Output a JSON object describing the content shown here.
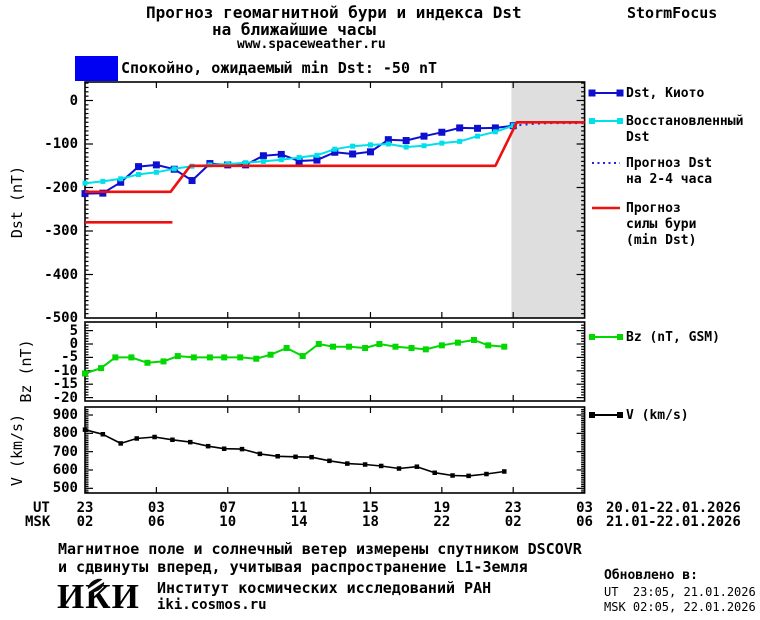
{
  "header": {
    "title_line1": "Прогноз геомагнитной бури и индекса Dst",
    "title_line2": "на ближайшие часы",
    "website": "www.spaceweather.ru",
    "brand": "StormFocus"
  },
  "alert": {
    "label": "Спокойно, ожидаемый min Dst: -50 nT",
    "color": "#0000f2"
  },
  "colors": {
    "dst_kyoto": "#0f0fd0",
    "restored_dst": "#00e0ea",
    "forecast_dst": "#2424e0",
    "storm_forecast": "#ee0f0f",
    "bz": "#00d800",
    "v": "#000000",
    "region_bg": "#dedede",
    "region_text": "#c6c6c6"
  },
  "legend": {
    "items": [
      {
        "lines": [
          "Dst, Киото"
        ],
        "color": "#0f0fd0",
        "style": "line-squares"
      },
      {
        "lines": [
          "Восстановленный",
          "Dst"
        ],
        "color": "#00e0ea",
        "style": "line-squares"
      },
      {
        "lines": [
          "Прогноз Dst",
          "на 2-4 часа"
        ],
        "color": "#2424e0",
        "style": "dotted"
      },
      {
        "lines": [
          "Прогноз",
          "силы бури",
          "(min Dst)"
        ],
        "color": "#ee0f0f",
        "style": "line"
      },
      {
        "lines": [
          "Bz (nT, GSM)"
        ],
        "color": "#00d800",
        "style": "line-squares"
      },
      {
        "lines": [
          "V (km/s)"
        ],
        "color": "#000000",
        "style": "line-squares"
      }
    ]
  },
  "xaxis": {
    "ut_label": "UT",
    "msk_label": "MSK",
    "ut_ticks": [
      "23",
      "03",
      "07",
      "11",
      "15",
      "19",
      "23",
      "03"
    ],
    "msk_ticks": [
      "02",
      "06",
      "10",
      "14",
      "18",
      "22",
      "02",
      "06"
    ],
    "ut_date_range": "20.01-22.01.2026",
    "msk_date_range": "21.01-22.01.2026"
  },
  "footer": {
    "note_line1": "Магнитное поле и солнечный ветер измерены спутником DSCOVR",
    "note_line2": "и сдвинуты вперед, учитывая распространение L1-Земля",
    "logo_text": "ИКИ",
    "institute": "Институт космических исследований РАН",
    "website": "iki.cosmos.ru",
    "updated_heading": "Обновлено в:",
    "updated_ut": "UT  23:05, 21.01.2026",
    "updated_msk": "MSK 02:05, 22.01.2026"
  },
  "chart_data": [
    {
      "type": "line",
      "title": "Прогноз геомагнитной бури и индекса Dst на ближайшие часы",
      "ylabel": "Dst (nT)",
      "yticks": [
        0,
        -100,
        -200,
        -300,
        -400,
        -500
      ],
      "ylim": [
        -500,
        43
      ],
      "x_unit": "hours since 23:00 UT 20.01.2026",
      "xlim": [
        0,
        28
      ],
      "grid": false,
      "legend_position": "right",
      "forecast_region": {
        "start_hour": 23.9,
        "end_hour": 28,
        "label": "ПРОГНОЗ"
      },
      "series": [
        {
          "name": "Dst, Киото",
          "color": "#0f0fd0",
          "marker": "square",
          "x": [
            0,
            1,
            2,
            3,
            4,
            5,
            6,
            7,
            8,
            9,
            10,
            11,
            12,
            13,
            14,
            15,
            16,
            17,
            18,
            19,
            20,
            21,
            22,
            23,
            24
          ],
          "values": [
            -214,
            -213,
            -188,
            -152,
            -148,
            -158,
            -184,
            -145,
            -148,
            -148,
            -127,
            -124,
            -139,
            -137,
            -119,
            -123,
            -118,
            -90,
            -92,
            -82,
            -73,
            -63,
            -64,
            -63,
            -58
          ]
        },
        {
          "name": "Восстановленный Dst",
          "color": "#00e0ea",
          "marker": "square",
          "x": [
            0,
            1,
            2,
            3,
            4,
            5,
            6,
            7,
            8,
            9,
            10,
            11,
            12,
            13,
            14,
            15,
            16,
            17,
            18,
            19,
            20,
            21,
            22,
            23,
            24
          ],
          "values": [
            -190,
            -186,
            -180,
            -170,
            -165,
            -157,
            -151,
            -148,
            -146,
            -143,
            -140,
            -136,
            -131,
            -126,
            -112,
            -105,
            -102,
            -100,
            -107,
            -104,
            -98,
            -94,
            -82,
            -72,
            -58
          ]
        },
        {
          "name": "Прогноз Dst на 2-4 часа",
          "color": "#2424e0",
          "marker": "none",
          "line_style": "dotted",
          "x": [
            24,
            25,
            26,
            27,
            28
          ],
          "values": [
            -58,
            -54,
            -52,
            -52,
            -52
          ]
        },
        {
          "name": "Прогноз силы бури (min Dst)",
          "color": "#ee0f0f",
          "marker": "none",
          "x": [
            0,
            4.8,
            5.9,
            23.0,
            24.2,
            28
          ],
          "values": [
            -210,
            -210,
            -150,
            -150,
            -50,
            -50
          ]
        },
        {
          "name": "storm-forecast-segment-2",
          "color": "#ee0f0f",
          "marker": "none",
          "x": [
            0,
            4.9
          ],
          "values": [
            -280,
            -280
          ]
        }
      ]
    },
    {
      "type": "line",
      "ylabel": "Bz (nT)",
      "yticks": [
        5,
        0,
        -5,
        -10,
        -15,
        -20
      ],
      "ylim": [
        -21.3,
        8.2
      ],
      "xlim": [
        0,
        28
      ],
      "grid": false,
      "series": [
        {
          "name": "Bz (nT, GSM)",
          "color": "#00d800",
          "marker": "square",
          "x": [
            0,
            0.9,
            1.7,
            2.6,
            3.5,
            4.4,
            5.2,
            6.1,
            7.0,
            7.8,
            8.7,
            9.6,
            10.4,
            11.3,
            12.2,
            13.1,
            13.9,
            14.8,
            15.7,
            16.5,
            17.4,
            18.3,
            19.1,
            20.0,
            20.9,
            21.8,
            22.6,
            23.5
          ],
          "values": [
            -11,
            -9,
            -5,
            -5,
            -7,
            -6.5,
            -4.5,
            -5,
            -5,
            -5,
            -5,
            -5.5,
            -4,
            -1.5,
            -4.5,
            0,
            -1,
            -1,
            -1.5,
            0,
            -1,
            -1.5,
            -2,
            -0.5,
            0.5,
            1.5,
            -0.5,
            -1
          ]
        }
      ]
    },
    {
      "type": "line",
      "ylabel": "V (km/s)",
      "yticks": [
        900,
        800,
        700,
        600,
        500
      ],
      "ylim": [
        475,
        944
      ],
      "xlim": [
        0,
        28
      ],
      "grid": false,
      "series": [
        {
          "name": "V (km/s)",
          "color": "#000000",
          "marker": "square",
          "x": [
            0,
            1.0,
            2.0,
            2.9,
            3.9,
            4.9,
            5.9,
            6.9,
            7.8,
            8.8,
            9.8,
            10.8,
            11.8,
            12.7,
            13.7,
            14.7,
            15.7,
            16.6,
            17.6,
            18.6,
            19.6,
            20.6,
            21.5,
            22.5,
            23.5
          ],
          "values": [
            820,
            795,
            745,
            772,
            780,
            765,
            752,
            730,
            716,
            714,
            688,
            675,
            672,
            670,
            650,
            635,
            630,
            622,
            608,
            618,
            585,
            570,
            568,
            578,
            592
          ]
        }
      ]
    }
  ]
}
